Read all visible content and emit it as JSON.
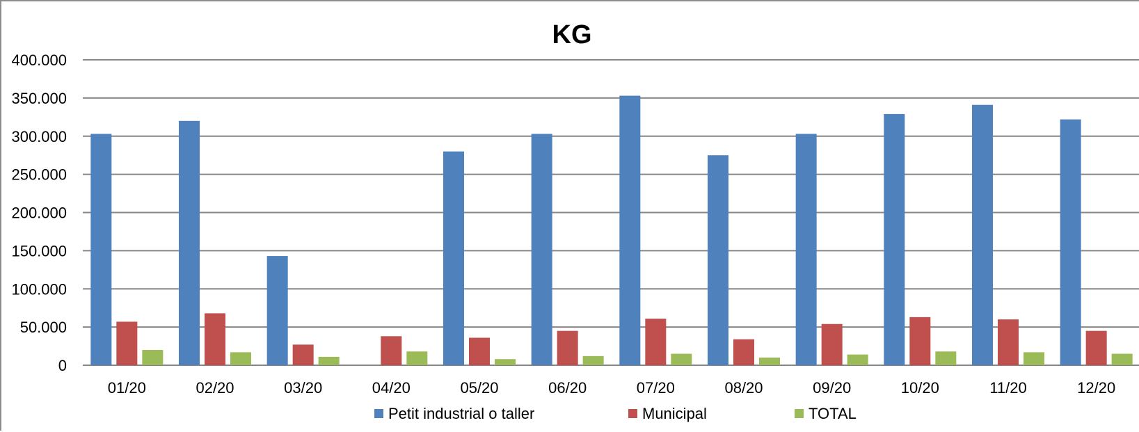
{
  "chart_data": {
    "type": "bar",
    "title": "KG",
    "xlabel": "",
    "ylabel": "",
    "categories": [
      "01/20",
      "02/20",
      "03/20",
      "04/20",
      "05/20",
      "06/20",
      "07/20",
      "08/20",
      "09/20",
      "10/20",
      "11/20",
      "12/20"
    ],
    "series": [
      {
        "name": "Petit industrial o taller",
        "color": "#4F81BD",
        "values": [
          303000,
          320000,
          143000,
          0,
          280000,
          303000,
          353000,
          275000,
          303000,
          329000,
          341000,
          322000
        ]
      },
      {
        "name": "Municipal",
        "color": "#C0504D",
        "values": [
          57000,
          68000,
          27000,
          38000,
          36000,
          45000,
          61000,
          34000,
          54000,
          63000,
          60000,
          45000
        ]
      },
      {
        "name": "TOTAL",
        "color": "#9BBB59",
        "values": [
          20000,
          17000,
          11000,
          18000,
          8000,
          12000,
          15000,
          10000,
          14000,
          18000,
          17000,
          15000
        ]
      }
    ],
    "ylim": [
      0,
      400000
    ],
    "yticks": [
      0,
      50000,
      100000,
      150000,
      200000,
      250000,
      300000,
      350000,
      400000
    ],
    "ytick_labels": [
      "0",
      "50.000",
      "100.000",
      "150.000",
      "200.000",
      "250.000",
      "300.000",
      "350.000",
      "400.000"
    ],
    "grid": true,
    "legend_position": "bottom"
  }
}
